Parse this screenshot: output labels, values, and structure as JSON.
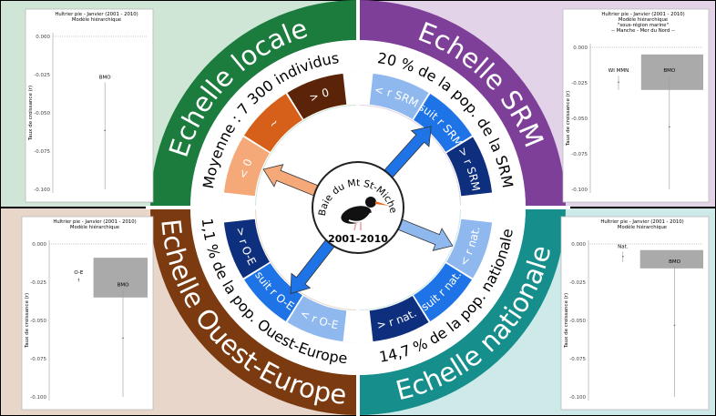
{
  "center": {
    "name": "Baie du Mt St-Michel",
    "period": "2001-2010"
  },
  "quadrants": [
    {
      "title": "Echelle locale",
      "subtitle": "Moyenne : 7 300 individus",
      "color": "#1b7c3d",
      "bg": "#cfe6d6",
      "segments": [
        {
          "label": "< 0",
          "color": "#f5a878"
        },
        {
          "label": "~",
          "color": "#d65f1a"
        },
        {
          "label": "> 0",
          "color": "#5b2307"
        }
      ],
      "panel": {
        "title": [
          "Huîtrier pie - Janvier (2001 - 2010)",
          "Modèle hiérarchique"
        ],
        "ylabel": "Taux de croissance (r)",
        "yticks": [
          "0.000",
          "-0.025",
          "-0.050",
          "-0.075",
          "-0.100"
        ],
        "labels": [
          "BMO"
        ]
      }
    },
    {
      "title": "Echelle SRM",
      "subtitle": "20 % de la pop. de la SRM",
      "color": "#7e3f99",
      "bg": "#e3d3e8",
      "segments": [
        {
          "label": "< r SRM",
          "color": "#8fb8ef"
        },
        {
          "label": "suit r SRM",
          "color": "#1e73e6"
        },
        {
          "label": "> r SRM",
          "color": "#0d2f7d"
        }
      ],
      "panel": {
        "title": [
          "Huîtrier pie - Janvier (2001 - 2010)",
          "Modèle hiérarchique",
          "\"sous-région marine\"",
          "-- Manche - Mer du Nord --"
        ],
        "ylabel": "Taux de croissance (r)",
        "yticks": [
          "0.000",
          "-0.025",
          "-0.050",
          "-0.075",
          "-0.100"
        ],
        "labels": [
          "WI MMN",
          "BMO"
        ]
      }
    },
    {
      "title": "Echelle nationale",
      "subtitle": "14,7 % de la pop. nationale",
      "color": "#168e8b",
      "bg": "#cde9e8",
      "segments": [
        {
          "label": "> r nat.",
          "color": "#0d2f7d"
        },
        {
          "label": "suit r nat.",
          "color": "#1e73e6"
        },
        {
          "label": "< r nat.",
          "color": "#8fb8ef"
        }
      ],
      "panel": {
        "title": [
          "Huîtrier pie - Janvier (2001 - 2010)",
          "Modèle hiérarchique"
        ],
        "ylabel": "Taux de croissance (r)",
        "yticks": [
          "0.000",
          "-0.025",
          "-0.050",
          "-0.075",
          "-0.100"
        ],
        "labels": [
          "Nat.",
          "BMO"
        ]
      }
    },
    {
      "title": "Echelle Ouest-Europe",
      "subtitle": "1,1 % de la pop. Ouest-Europe",
      "color": "#7b3a0f",
      "bg": "#e8d6ca",
      "segments": [
        {
          "label": "> r O-E",
          "color": "#0d2f7d"
        },
        {
          "label": "suit r O-E",
          "color": "#1e73e6"
        },
        {
          "label": "< r O-E",
          "color": "#8fb8ef"
        }
      ],
      "panel": {
        "title": [
          "Huîtrier pie - Janvier (2001 - 2010)",
          "Modèle hiérarchique"
        ],
        "ylabel": "Taux de croissance (r)",
        "yticks": [
          "0.000",
          "-0.025",
          "-0.050",
          "-0.075",
          "-0.100"
        ],
        "labels": [
          "O-E",
          "BMO"
        ]
      }
    }
  ]
}
